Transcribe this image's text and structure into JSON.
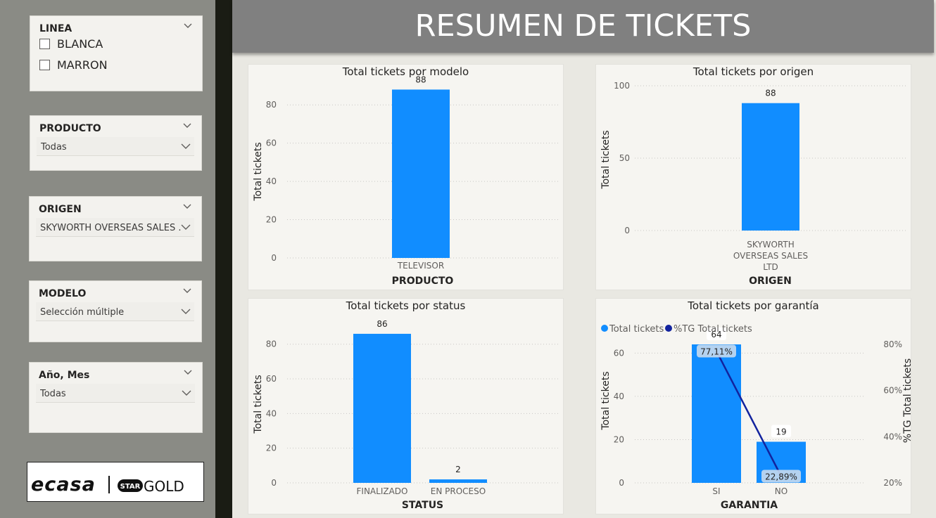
{
  "page_title": "RESUMEN DE TICKETS",
  "colors": {
    "bar": "#118dff",
    "line": "#12239e",
    "header": "#808080",
    "sidebar": "#8a8b85"
  },
  "slicers": {
    "linea": {
      "title": "LINEA",
      "options": [
        "BLANCA",
        "MARRON"
      ]
    },
    "producto": {
      "title": "PRODUCTO",
      "value": "Todas"
    },
    "origen": {
      "title": "ORIGEN",
      "value": "SKYWORTH OVERSEAS SALES ..."
    },
    "modelo": {
      "title": "MODELO",
      "value": "Selección múltiple"
    },
    "anio_mes": {
      "title": "Año, Mes",
      "value": "Todas"
    }
  },
  "logo": {
    "brand_left": "ecasa",
    "brand_star": "STAR",
    "brand_gold": "GOLD"
  },
  "chart_data": [
    {
      "type": "bar",
      "title": "Total tickets por modelo",
      "xlabel": "PRODUCTO",
      "ylabel": "Total tickets",
      "categories": [
        "TELEVISOR"
      ],
      "values": [
        88
      ],
      "ylim": [
        0,
        90
      ],
      "yticks": [
        0,
        20,
        40,
        60,
        80
      ],
      "grid": true
    },
    {
      "type": "bar",
      "title": "Total tickets por origen",
      "xlabel": "ORIGEN",
      "ylabel": "Total tickets",
      "categories": [
        "SKYWORTH OVERSEAS SALES LTD"
      ],
      "values": [
        88
      ],
      "ylim": [
        0,
        100
      ],
      "yticks": [
        0,
        50,
        100
      ],
      "grid": true
    },
    {
      "type": "bar",
      "title": "Total tickets por status",
      "xlabel": "STATUS",
      "ylabel": "Total tickets",
      "categories": [
        "FINALIZADO",
        "EN PROCESO"
      ],
      "values": [
        86,
        2
      ],
      "ylim": [
        0,
        88
      ],
      "yticks": [
        0,
        20,
        40,
        60,
        80
      ],
      "grid": true
    },
    {
      "type": "bar",
      "title": "Total tickets por garantía",
      "xlabel": "GARANTIA",
      "ylabel": "Total tickets",
      "y2label": "%TG Total tickets",
      "categories": [
        "SI",
        "NO"
      ],
      "series": [
        {
          "name": "Total tickets",
          "kind": "bar",
          "values": [
            64,
            19
          ],
          "labels": [
            "64",
            "19"
          ]
        },
        {
          "name": "%TG Total tickets",
          "kind": "line",
          "values": [
            77.11,
            22.89
          ],
          "labels": [
            "77,11%",
            "22,89%"
          ]
        }
      ],
      "ylim": [
        0,
        64
      ],
      "yticks": [
        0,
        20,
        40,
        60
      ],
      "y2lim": [
        20,
        80
      ],
      "y2ticks": [
        "20%",
        "40%",
        "60%",
        "80%"
      ],
      "legend": "top-left",
      "grid": true
    }
  ]
}
